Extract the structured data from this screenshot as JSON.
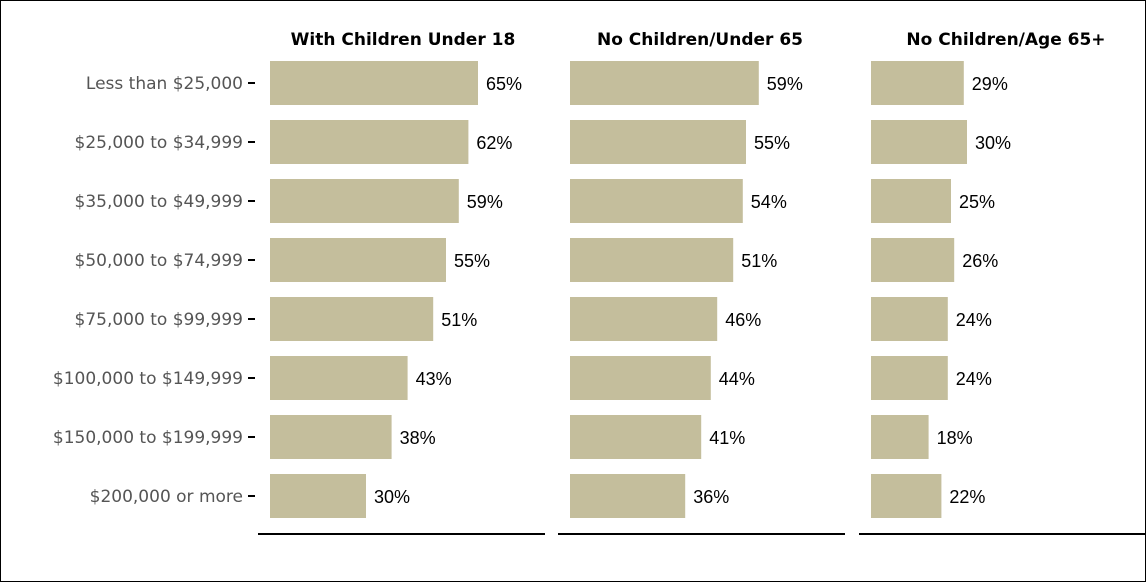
{
  "chart_data": {
    "type": "bar",
    "orientation": "horizontal",
    "categories": [
      "Less than $25,000",
      "$25,000 to $34,999",
      "$35,000 to $49,999",
      "$50,000 to $74,999",
      "$75,000 to $99,999",
      "$100,000 to $149,999",
      "$150,000 to $199,999",
      "$200,000 or more"
    ],
    "series": [
      {
        "name": "With Children Under 18",
        "values": [
          65,
          62,
          59,
          55,
          51,
          43,
          38,
          30
        ]
      },
      {
        "name": "No Children/Under 65",
        "values": [
          59,
          55,
          54,
          51,
          46,
          44,
          41,
          36
        ]
      },
      {
        "name": "No Children/Age 65+",
        "values": [
          29,
          30,
          25,
          26,
          24,
          24,
          18,
          22
        ]
      }
    ],
    "value_suffix": "%",
    "xlim": [
      0,
      100
    ],
    "grid": false,
    "bar_color": "#c4be9c"
  }
}
